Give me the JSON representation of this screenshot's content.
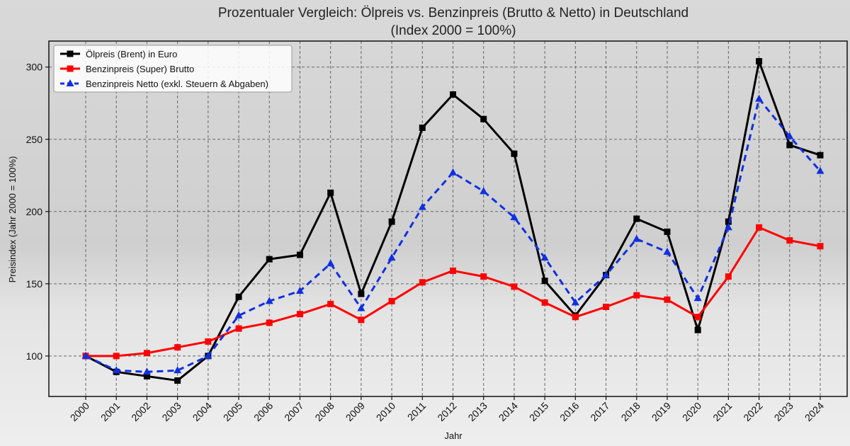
{
  "chart_data": {
    "type": "line",
    "title": "Prozentualer Vergleich: Ölpreis vs. Benzinpreis (Brutto & Netto) in Deutschland",
    "subtitle": "(Index 2000 = 100%)",
    "xlabel": "Jahr",
    "ylabel": "Preisindex (Jahr 2000 = 100%)",
    "ylim": [
      72,
      318
    ],
    "yticks": [
      100,
      150,
      200,
      250,
      300
    ],
    "grid": true,
    "legend_position": "top-left",
    "categories": [
      "2000",
      "2001",
      "2002",
      "2003",
      "2004",
      "2005",
      "2006",
      "2007",
      "2008",
      "2009",
      "2010",
      "2011",
      "2012",
      "2013",
      "2014",
      "2015",
      "2016",
      "2017",
      "2018",
      "2019",
      "2020",
      "2021",
      "2022",
      "2023",
      "2024"
    ],
    "series": [
      {
        "name": "Ölpreis (Brent) in Euro",
        "color": "#000000",
        "marker": "square",
        "dash": "solid",
        "values": [
          100,
          89,
          86,
          83,
          100,
          141,
          167,
          170,
          213,
          143,
          193,
          258,
          281,
          264,
          240,
          152,
          128,
          156,
          195,
          186,
          118,
          193,
          304,
          246,
          239
        ]
      },
      {
        "name": "Benzinpreis (Super) Brutto",
        "color": "#ff0000",
        "marker": "square",
        "dash": "solid",
        "values": [
          100,
          100,
          102,
          106,
          110,
          119,
          123,
          129,
          136,
          125,
          138,
          151,
          159,
          155,
          148,
          137,
          127,
          134,
          142,
          139,
          127,
          155,
          189,
          180,
          176
        ]
      },
      {
        "name": "Benzinpreis Netto (exkl. Steuern & Abgaben)",
        "color": "#1030e0",
        "marker": "triangle",
        "dash": "dashed",
        "values": [
          100,
          90,
          89,
          90,
          100,
          128,
          138,
          145,
          164,
          133,
          168,
          203,
          227,
          214,
          196,
          168,
          137,
          156,
          181,
          172,
          140,
          189,
          278,
          252,
          228
        ]
      }
    ]
  }
}
